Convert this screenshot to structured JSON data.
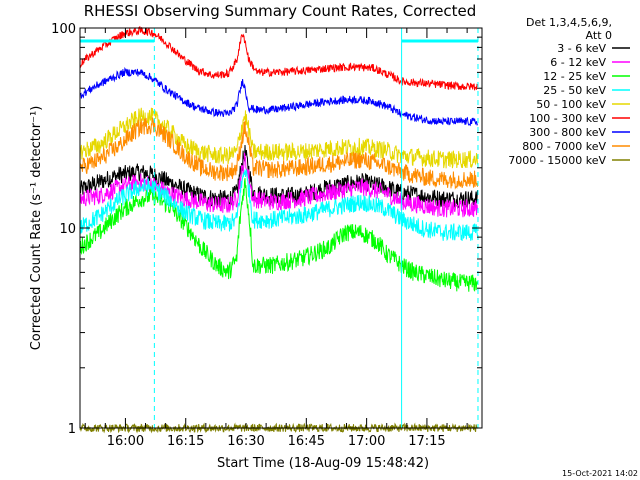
{
  "chart_data": {
    "type": "line",
    "title": "RHESSI Observing Summary Count Rates, Corrected",
    "xlabel": "Start Time (18-Aug-09 15:48:42)",
    "ylabel": "Corrected Count Rate (s⁻¹ detector⁻¹)",
    "yscale": "log",
    "ylim": [
      1,
      100
    ],
    "xlim_minutes": [
      0,
      100
    ],
    "x_ticks": [
      {
        "label": "16:00",
        "minute": 11.3
      },
      {
        "label": "16:15",
        "minute": 26.3
      },
      {
        "label": "16:30",
        "minute": 41.3
      },
      {
        "label": "16:45",
        "minute": 56.3
      },
      {
        "label": "17:00",
        "minute": 71.3
      },
      {
        "label": "17:15",
        "minute": 86.3
      }
    ],
    "y_ticks": [
      {
        "label": "1",
        "value": 1
      },
      {
        "label": "10",
        "value": 10
      },
      {
        "label": "100",
        "value": 100
      }
    ],
    "legend_header": [
      "Det 1,3,4,5,6,9,",
      "Att 0"
    ],
    "legend_position": "right",
    "night_intervals": [
      [
        0,
        18.5
      ],
      [
        80,
        99
      ]
    ],
    "series": [
      {
        "name": "3 - 6 keV",
        "color": "#000000",
        "x": [
          0,
          5,
          10,
          15,
          18,
          22,
          26,
          30,
          34,
          37,
          39,
          41,
          43,
          48,
          55,
          62,
          70,
          76,
          80,
          85,
          90,
          95,
          99
        ],
        "y": [
          15.5,
          17,
          18.5,
          19,
          18.5,
          17,
          15.5,
          14.5,
          14,
          14,
          15,
          24,
          15,
          14.5,
          14.5,
          16,
          17,
          16,
          15,
          14.5,
          14,
          14,
          14
        ]
      },
      {
        "name": "6 - 12 keV",
        "color": "#ff00ff",
        "x": [
          0,
          5,
          10,
          15,
          18,
          22,
          26,
          30,
          34,
          37,
          39,
          41,
          43,
          48,
          55,
          62,
          70,
          76,
          80,
          85,
          90,
          95,
          99
        ],
        "y": [
          14,
          14.5,
          16,
          17,
          16.5,
          15,
          14,
          13.5,
          13,
          13,
          14,
          22,
          14,
          13.5,
          14,
          15,
          16,
          15,
          13.5,
          13,
          12.5,
          12.5,
          12.5
        ]
      },
      {
        "name": "12 - 25 keV",
        "color": "#00ff00",
        "x": [
          0,
          5,
          10,
          15,
          18,
          22,
          26,
          30,
          34,
          37,
          39,
          41,
          43,
          48,
          55,
          62,
          66,
          70,
          74,
          76,
          80,
          83,
          90,
          95,
          99
        ],
        "y": [
          8,
          9.5,
          12,
          14,
          14.5,
          13,
          10.5,
          8,
          6.5,
          6,
          7,
          17,
          6.5,
          6.5,
          7,
          8,
          9.5,
          9.5,
          8.5,
          7.5,
          6.5,
          6,
          5.5,
          5.3,
          5.3
        ]
      },
      {
        "name": "25 - 50 keV",
        "color": "#00ffff",
        "x": [
          0,
          5,
          10,
          15,
          18,
          22,
          26,
          30,
          34,
          37,
          39,
          41,
          43,
          48,
          55,
          62,
          70,
          76,
          80,
          85,
          90,
          95,
          99
        ],
        "y": [
          10,
          11.5,
          14,
          16,
          16,
          14,
          12,
          11,
          10.5,
          10.5,
          11,
          20,
          11,
          11,
          11.5,
          12.5,
          13.5,
          12.5,
          11,
          10,
          9.5,
          9.5,
          9.5
        ]
      },
      {
        "name": "50 - 100 keV",
        "color": "#e6d800",
        "x": [
          0,
          5,
          10,
          15,
          18,
          22,
          26,
          30,
          34,
          37,
          39,
          41,
          43,
          48,
          55,
          62,
          70,
          76,
          80,
          85,
          90,
          95,
          99
        ],
        "y": [
          24,
          26,
          31,
          36,
          36,
          31,
          26,
          24,
          23,
          23,
          24,
          37,
          24,
          24,
          24,
          25,
          25.5,
          24.5,
          23,
          22.5,
          22,
          22,
          22
        ]
      },
      {
        "name": "100 - 300 keV",
        "color": "#ff0000",
        "x": [
          0,
          3,
          7,
          11,
          15,
          18,
          21,
          25,
          29,
          33,
          37,
          39,
          40.5,
          42,
          44,
          48,
          55,
          62,
          68,
          73,
          77,
          80,
          85,
          90,
          95,
          99
        ],
        "y": [
          66,
          74,
          84,
          94,
          97,
          95,
          86,
          72,
          62,
          58,
          59,
          69,
          95,
          69,
          60,
          60,
          61,
          63,
          64,
          63,
          58,
          54,
          53,
          52,
          51,
          51
        ]
      },
      {
        "name": "300 - 800 keV",
        "color": "#0000ff",
        "x": [
          0,
          3,
          7,
          11,
          15,
          18,
          21,
          25,
          29,
          33,
          37,
          39,
          40.5,
          42,
          44,
          48,
          55,
          62,
          68,
          73,
          77,
          80,
          85,
          90,
          95,
          99
        ],
        "y": [
          46,
          50,
          55,
          60,
          60,
          56,
          50,
          44,
          40,
          38,
          37,
          41,
          55,
          40,
          39,
          39,
          41,
          43,
          44,
          43,
          40,
          37,
          35,
          34,
          34,
          34
        ]
      },
      {
        "name": "800 - 7000 keV",
        "color": "#ff8c00",
        "x": [
          0,
          5,
          10,
          15,
          18,
          22,
          26,
          30,
          34,
          37,
          39,
          41,
          43,
          48,
          55,
          62,
          70,
          76,
          80,
          85,
          90,
          95,
          99
        ],
        "y": [
          20,
          22,
          26,
          32,
          33,
          28,
          23,
          20,
          19,
          19,
          20,
          32,
          20,
          19.5,
          20,
          21,
          22,
          20.5,
          19,
          18,
          17.5,
          17.5,
          17.5
        ]
      },
      {
        "name": "7000 - 15000 keV",
        "color": "#808000",
        "x": [
          0,
          99
        ],
        "y": [
          1.0,
          1.0
        ]
      }
    ]
  },
  "footer_date": "15-Oct-2021 14:02"
}
